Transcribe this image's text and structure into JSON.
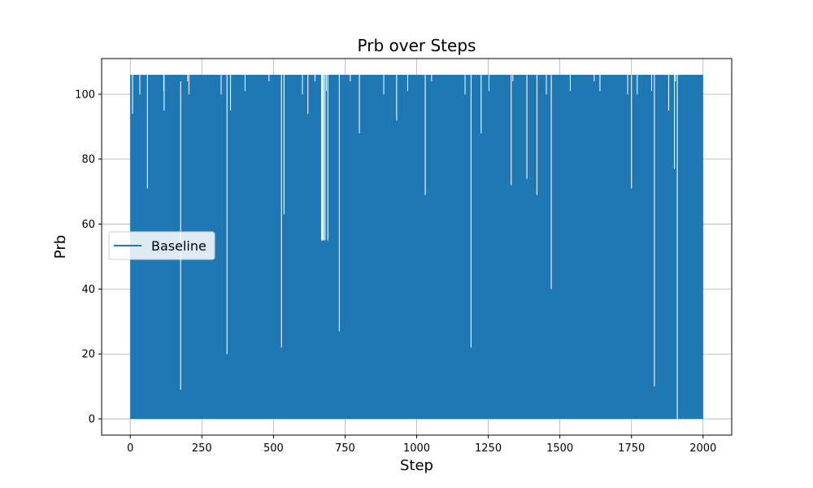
{
  "chart_data": {
    "type": "line",
    "title": "Prb over Steps",
    "xlabel": "Step",
    "ylabel": "Prb",
    "xlim": [
      -100,
      2100
    ],
    "ylim": [
      -5,
      111
    ],
    "xticks": [
      0,
      250,
      500,
      750,
      1000,
      1250,
      1500,
      1750,
      2000
    ],
    "yticks": [
      0,
      20,
      40,
      60,
      80,
      100
    ],
    "grid": true,
    "legend": {
      "placement": "center-left"
    },
    "series": [
      {
        "name": "Baseline",
        "color": "#1f77b4",
        "x_range": [
          0,
          2000
        ],
        "y_values_observed": [
          0,
          106
        ],
        "description_values": {
          "top_value": 106,
          "bottom_value": 0,
          "intermediate_levels": [
            9,
            20,
            22,
            27,
            55,
            63,
            69,
            71,
            74,
            77,
            88,
            92,
            94,
            95,
            100,
            101,
            104
          ]
        }
      }
    ]
  }
}
